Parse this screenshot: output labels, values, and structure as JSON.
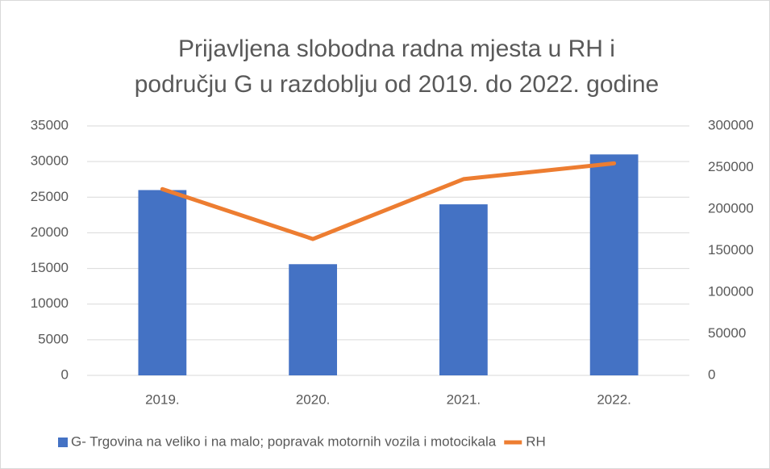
{
  "chart_data": {
    "type": "combo",
    "title": [
      "Prijavljena slobodna radna mjesta u RH i",
      "području G u razdoblju od 2019. do 2022. godine"
    ],
    "categories": [
      "2019.",
      "2020.",
      "2021.",
      "2022."
    ],
    "series": [
      {
        "name": "G- Trgovina na veliko i na malo; popravak motornih vozila i motocikala",
        "type": "bar",
        "color": "#4472c4",
        "values": [
          26000,
          15600,
          24000,
          31000
        ]
      },
      {
        "name": "RH",
        "type": "line",
        "axis": "y2",
        "color": "#ed7d31",
        "values": [
          224000,
          164000,
          236000,
          255000
        ]
      }
    ],
    "ylim": [
      0,
      35000
    ],
    "yticks": [
      0,
      5000,
      10000,
      15000,
      20000,
      25000,
      30000,
      35000
    ],
    "y2lim": [
      0,
      300000
    ],
    "y2ticks": [
      0,
      50000,
      100000,
      150000,
      200000,
      250000,
      300000
    ],
    "grid": true,
    "legend": "bottom"
  }
}
